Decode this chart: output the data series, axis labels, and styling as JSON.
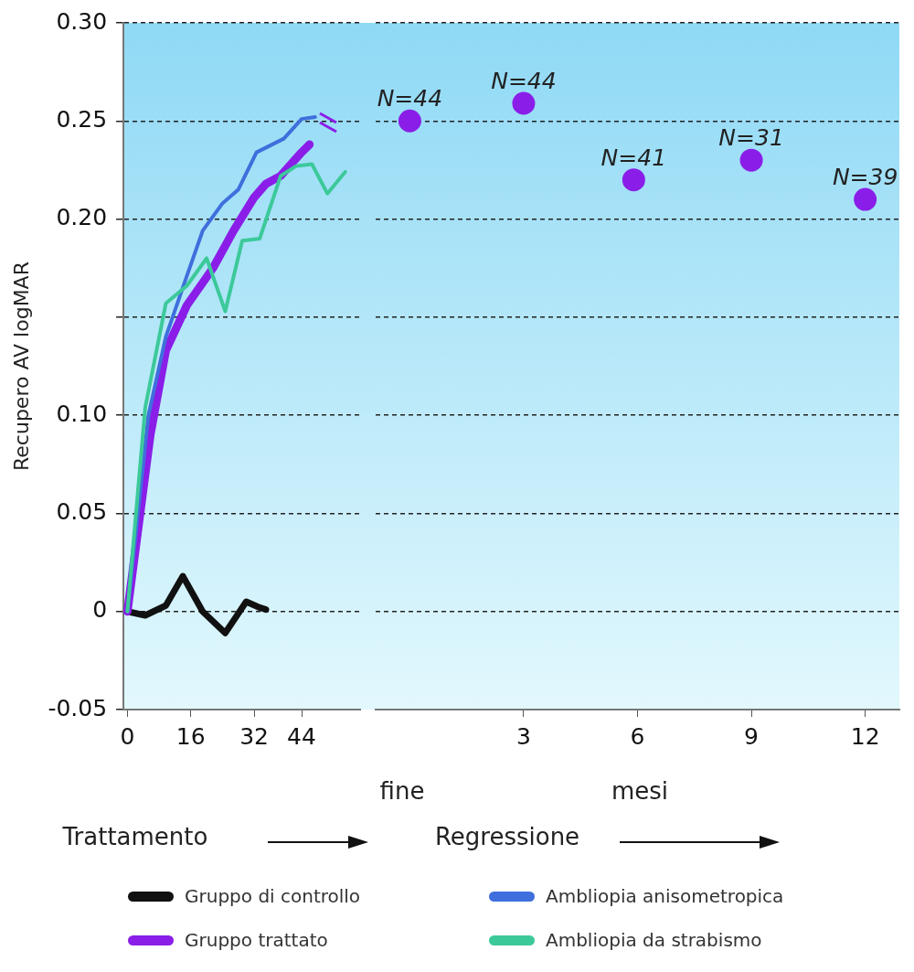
{
  "chart_data": [
    {
      "type": "line",
      "ylabel": "Recupero AV logMAR",
      "xlim": [
        -1,
        59
      ],
      "xticks": [
        0,
        16,
        32,
        44
      ],
      "ylim": [
        -0.05,
        0.3
      ],
      "yticks": [
        -0.05,
        0,
        {
          "value": 0.05,
          "label": "0.05"
        },
        {
          "value": 0.1,
          "label": "0.10"
        },
        {
          "value": 0.15,
          "label": null
        },
        {
          "value": 0.2,
          "label": "0.20"
        },
        {
          "value": 0.25,
          "label": "0.25"
        },
        {
          "value": 0.3,
          "label": "0.30"
        }
      ],
      "grid": "y",
      "legend": "bottom",
      "marker": "none",
      "annotations": [
        "Trattamento"
      ],
      "series": [
        {
          "name": "Gruppo di controllo",
          "color": "#111111",
          "x": [
            0,
            4.5,
            9.7,
            14,
            19,
            24.7,
            30,
            33.4,
            35
          ],
          "values": [
            0,
            -0.002,
            0.003,
            0.018,
            0,
            -0.011,
            0.005,
            0.002,
            0.001
          ]
        },
        {
          "name": "Gruppo trattato",
          "color": "#8a1ee8",
          "x": [
            0,
            5.8,
            9.7,
            15,
            21.6,
            26.8,
            32,
            35,
            38.7,
            44,
            46
          ],
          "values": [
            0,
            0.09,
            0.133,
            0.156,
            0.175,
            0.194,
            0.211,
            0.218,
            0.222,
            0.234,
            0.238
          ]
        },
        {
          "name": "Ambliopia anisometropica",
          "color": "#3f6fdc",
          "x": [
            0,
            5.3,
            9.7,
            15,
            19,
            24,
            28,
            32.6,
            39.5,
            44,
            47.4
          ],
          "values": [
            0,
            0.1,
            0.14,
            0.171,
            0.194,
            0.208,
            0.215,
            0.234,
            0.241,
            0.251,
            0.252
          ]
        },
        {
          "name": "Ambliopia da strabismo",
          "color": "#3cc99a",
          "x": [
            0,
            4.5,
            9.7,
            15,
            20,
            24.7,
            29,
            33.4,
            38.7,
            42.6,
            46.6,
            50.5,
            55
          ],
          "values": [
            0,
            0.104,
            0.157,
            0.166,
            0.18,
            0.153,
            0.189,
            0.19,
            0.222,
            0.227,
            0.228,
            0.213,
            0.224
          ]
        }
      ]
    },
    {
      "type": "scatter",
      "marker": "circle",
      "tick_labels": "x",
      "xlim": [
        -0.9,
        12.9
      ],
      "xticks": [
        3,
        6,
        9,
        12
      ],
      "ylim": [
        -0.05,
        0.3
      ],
      "yticks": [
        -0.05,
        0,
        0.05,
        0.1,
        0.15,
        0.2,
        0.25,
        0.3
      ],
      "grid": "y",
      "annotations": [
        {
          "text": "N=44",
          "x": 0,
          "y": 0.25
        },
        {
          "text": "N=44",
          "x": 3,
          "y": 0.259
        },
        {
          "text": "N=41",
          "x": 5.9,
          "y": 0.22
        },
        {
          "text": "N=31",
          "x": 9,
          "y": 0.23
        },
        {
          "text": "N=39",
          "x": 12,
          "y": 0.21
        },
        "fine",
        "mesi",
        "Regressione"
      ],
      "series": [
        {
          "color": "#8a1ee8",
          "x": [
            0,
            3,
            5.9,
            9,
            12
          ],
          "values": [
            0.25,
            0.259,
            0.22,
            0.23,
            0.21
          ]
        }
      ]
    }
  ]
}
